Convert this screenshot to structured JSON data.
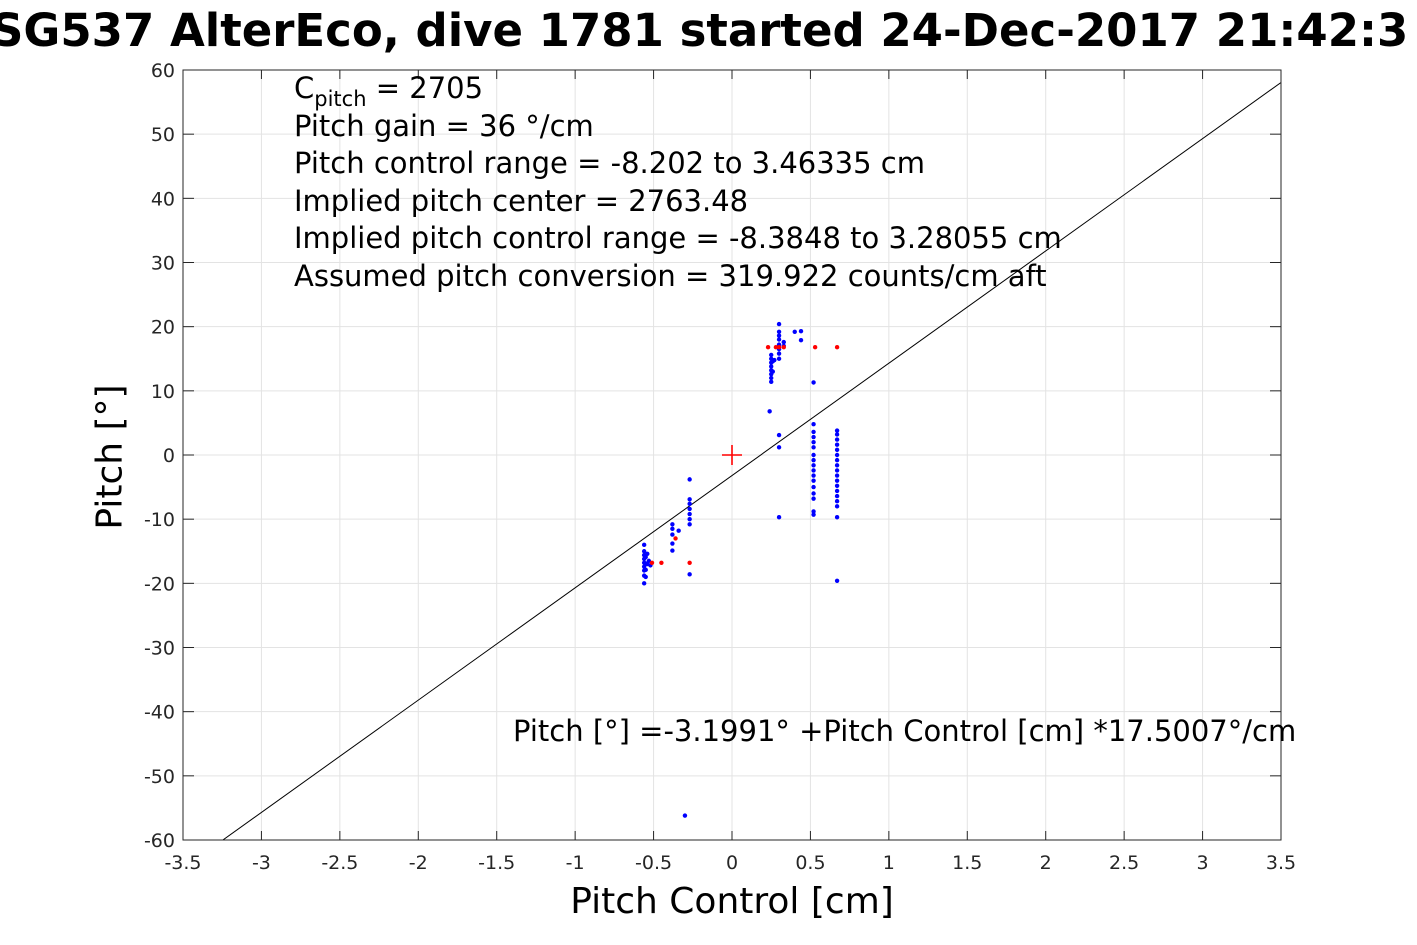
{
  "title": "SG537 AlterEco, dive 1781 started 24-Dec-2017 21:42:3",
  "annotations": {
    "cpitch_symbol": "C",
    "cpitch_sub": "pitch",
    "cpitch_rest": " = 2705",
    "pitch_gain": "Pitch gain = 36 °/cm",
    "pitch_control_range": "Pitch control range = -8.202 to 3.46335 cm",
    "implied_pitch_center": "Implied pitch center = 2763.48",
    "implied_pitch_control_range": "Implied pitch control range = -8.3848 to 3.28055 cm",
    "assumed_pitch_conversion": "Assumed pitch conversion = 319.922 counts/cm aft",
    "fit_equation": "Pitch [°] =-3.1991° +Pitch Control [cm] *17.5007°/cm"
  },
  "colors": {
    "climb": "#0000ff",
    "dive": "#ff0000",
    "fit_line": "#000000",
    "center_marker": "#ff0000",
    "grid": "#e3e3e3"
  },
  "chart_data": {
    "type": "scatter",
    "xlabel": "Pitch Control [cm]",
    "ylabel": "Pitch [°]",
    "xlim": [
      -3.5,
      3.5
    ],
    "ylim": [
      -60,
      60
    ],
    "grid": true,
    "xticks": [
      -3.5,
      -3,
      -2.5,
      -2,
      -1.5,
      -1,
      -0.5,
      0,
      0.5,
      1,
      1.5,
      2,
      2.5,
      3,
      3.5
    ],
    "yticks": [
      -60,
      -50,
      -40,
      -30,
      -20,
      -10,
      0,
      10,
      20,
      30,
      40,
      50,
      60
    ],
    "xtick_labels": [
      "-3.5",
      "-3",
      "-2.5",
      "-2",
      "-1.5",
      "-1",
      "-0.5",
      "0",
      "0.5",
      "1",
      "1.5",
      "2",
      "2.5",
      "3",
      "3.5"
    ],
    "ytick_labels": [
      "-60",
      "-50",
      "-40",
      "-30",
      "-20",
      "-10",
      "0",
      "10",
      "20",
      "30",
      "40",
      "50",
      "60"
    ],
    "fit_line": {
      "intercept": -3.1991,
      "slope": 17.5007
    },
    "center_marker": {
      "x": 0,
      "y": 0
    },
    "series": [
      {
        "color": "#0000ff",
        "points": [
          [
            -0.56,
            -20.0
          ],
          [
            -0.56,
            -18.8
          ],
          [
            -0.56,
            -18.0
          ],
          [
            -0.56,
            -17.4
          ],
          [
            -0.56,
            -16.8
          ],
          [
            -0.56,
            -16.2
          ],
          [
            -0.56,
            -15.6
          ],
          [
            -0.56,
            -15.0
          ],
          [
            -0.56,
            -14.0
          ],
          [
            -0.55,
            -19.0
          ],
          [
            -0.55,
            -17.9
          ],
          [
            -0.55,
            -16.9
          ],
          [
            -0.55,
            -15.9
          ],
          [
            -0.54,
            -17.0
          ],
          [
            -0.54,
            -15.4
          ],
          [
            -0.53,
            -16.5
          ],
          [
            -0.52,
            -17.2
          ],
          [
            -0.38,
            -10.8
          ],
          [
            -0.38,
            -11.5
          ],
          [
            -0.38,
            -12.4
          ],
          [
            -0.38,
            -13.8
          ],
          [
            -0.38,
            -14.9
          ],
          [
            -0.34,
            -11.8
          ],
          [
            -0.27,
            -3.8
          ],
          [
            -0.27,
            -6.9
          ],
          [
            -0.27,
            -7.6
          ],
          [
            -0.27,
            -8.4
          ],
          [
            -0.27,
            -9.2
          ],
          [
            -0.27,
            -10.0
          ],
          [
            -0.27,
            -10.8
          ],
          [
            -0.27,
            -18.6
          ],
          [
            -0.3,
            -56.2
          ],
          [
            0.24,
            6.8
          ],
          [
            0.25,
            11.4
          ],
          [
            0.25,
            12.0
          ],
          [
            0.25,
            12.6
          ],
          [
            0.25,
            13.2
          ],
          [
            0.25,
            13.8
          ],
          [
            0.25,
            14.4
          ],
          [
            0.25,
            15.0
          ],
          [
            0.25,
            15.6
          ],
          [
            0.26,
            13.0
          ],
          [
            0.26,
            14.6
          ],
          [
            0.27,
            14.8
          ],
          [
            0.3,
            15.0
          ],
          [
            0.3,
            15.8
          ],
          [
            0.3,
            16.5
          ],
          [
            0.3,
            17.2
          ],
          [
            0.3,
            18.0
          ],
          [
            0.3,
            18.6
          ],
          [
            0.3,
            19.2
          ],
          [
            0.3,
            20.4
          ],
          [
            0.3,
            3.1
          ],
          [
            0.3,
            1.2
          ],
          [
            0.3,
            -9.7
          ],
          [
            0.33,
            17.0
          ],
          [
            0.33,
            17.6
          ],
          [
            0.4,
            19.2
          ],
          [
            0.44,
            19.3
          ],
          [
            0.44,
            17.9
          ],
          [
            0.52,
            11.3
          ],
          [
            0.52,
            4.8
          ],
          [
            0.52,
            3.6
          ],
          [
            0.52,
            2.8
          ],
          [
            0.52,
            2.0
          ],
          [
            0.52,
            1.2
          ],
          [
            0.52,
            0.0
          ],
          [
            0.52,
            -0.8
          ],
          [
            0.52,
            -1.6
          ],
          [
            0.52,
            -2.4
          ],
          [
            0.52,
            -3.2
          ],
          [
            0.52,
            -4.0
          ],
          [
            0.52,
            -5.0
          ],
          [
            0.52,
            -6.0
          ],
          [
            0.52,
            -6.8
          ],
          [
            0.52,
            -8.8
          ],
          [
            0.52,
            -9.3
          ],
          [
            0.67,
            3.8
          ],
          [
            0.67,
            3.2
          ],
          [
            0.67,
            2.4
          ],
          [
            0.67,
            1.6
          ],
          [
            0.67,
            0.8
          ],
          [
            0.67,
            0.0
          ],
          [
            0.67,
            -0.8
          ],
          [
            0.67,
            -1.6
          ],
          [
            0.67,
            -2.4
          ],
          [
            0.67,
            -3.2
          ],
          [
            0.67,
            -4.0
          ],
          [
            0.67,
            -4.8
          ],
          [
            0.67,
            -5.6
          ],
          [
            0.67,
            -6.4
          ],
          [
            0.67,
            -7.2
          ],
          [
            0.67,
            -8.0
          ],
          [
            0.67,
            -9.7
          ],
          [
            0.67,
            -19.6
          ]
        ]
      },
      {
        "color": "#ff0000",
        "points": [
          [
            -0.51,
            -16.8
          ],
          [
            -0.45,
            -16.8
          ],
          [
            -0.36,
            -13.0
          ],
          [
            -0.27,
            -16.8
          ],
          [
            0.23,
            16.8
          ],
          [
            0.28,
            16.8
          ],
          [
            0.3,
            16.8
          ],
          [
            0.33,
            16.8
          ],
          [
            0.53,
            16.8
          ],
          [
            0.67,
            16.8
          ]
        ]
      }
    ]
  }
}
